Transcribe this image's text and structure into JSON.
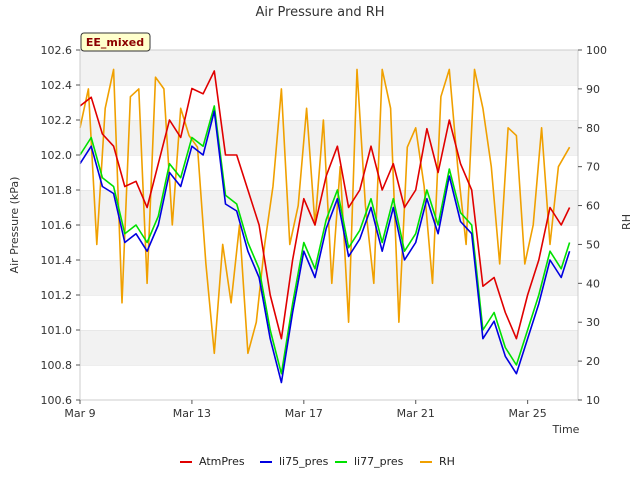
{
  "chart_data": {
    "type": "line",
    "title": "Air Pressure and RH",
    "badge": "EE_mixed",
    "xlabel": "Time",
    "ylabel": "Air Pressure (kPa)",
    "y2label": "RH",
    "x_ticks": [
      "Mar 9",
      "Mar 13",
      "Mar 17",
      "Mar 21",
      "Mar 25"
    ],
    "x_tick_days": [
      9,
      13,
      17,
      21,
      25
    ],
    "xlim": [
      9,
      26.8
    ],
    "ylim": [
      100.6,
      102.6
    ],
    "y_ticks": [
      "100.6",
      "100.8",
      "101.0",
      "101.2",
      "101.4",
      "101.6",
      "101.8",
      "102.0",
      "102.2",
      "102.4",
      "102.6"
    ],
    "y2lim": [
      10,
      100
    ],
    "y2_ticks": [
      "10",
      "20",
      "30",
      "40",
      "50",
      "60",
      "70",
      "80",
      "90",
      "100"
    ],
    "grid": "horizontal bands",
    "legend_position": "bottom",
    "colors": {
      "AtmPres": "#e00000",
      "li75_pres": "#0000e0",
      "li77_pres": "#00e000",
      "RH": "#f0a000"
    },
    "series": [
      {
        "name": "AtmPres",
        "axis": "left",
        "x": [
          9.0,
          9.4,
          9.8,
          10.2,
          10.6,
          11.0,
          11.4,
          11.8,
          12.2,
          12.6,
          13.0,
          13.4,
          13.8,
          14.2,
          14.6,
          15.0,
          15.4,
          15.8,
          16.2,
          16.6,
          17.0,
          17.4,
          17.8,
          18.2,
          18.6,
          19.0,
          19.4,
          19.8,
          20.2,
          20.6,
          21.0,
          21.4,
          21.8,
          22.2,
          22.6,
          23.0,
          23.4,
          23.8,
          24.2,
          24.6,
          25.0,
          25.4,
          25.8,
          26.2,
          26.5
        ],
        "values": [
          102.28,
          102.33,
          102.12,
          102.05,
          101.82,
          101.85,
          101.7,
          101.95,
          102.2,
          102.1,
          102.38,
          102.35,
          102.48,
          102.0,
          102.0,
          101.8,
          101.6,
          101.2,
          100.95,
          101.4,
          101.75,
          101.6,
          101.88,
          102.05,
          101.7,
          101.8,
          102.05,
          101.8,
          101.95,
          101.7,
          101.8,
          102.15,
          101.9,
          102.2,
          101.95,
          101.8,
          101.25,
          101.3,
          101.1,
          100.95,
          101.2,
          101.4,
          101.7,
          101.6,
          101.7
        ]
      },
      {
        "name": "li75_pres",
        "axis": "left",
        "x": [
          9.0,
          9.4,
          9.8,
          10.2,
          10.6,
          11.0,
          11.4,
          11.8,
          12.2,
          12.6,
          13.0,
          13.4,
          13.8,
          14.2,
          14.6,
          15.0,
          15.4,
          15.8,
          16.2,
          16.6,
          17.0,
          17.4,
          17.8,
          18.2,
          18.6,
          19.0,
          19.4,
          19.8,
          20.2,
          20.6,
          21.0,
          21.4,
          21.8,
          22.2,
          22.6,
          23.0,
          23.4,
          23.8,
          24.2,
          24.6,
          25.0,
          25.4,
          25.8,
          26.2,
          26.5
        ],
        "values": [
          101.95,
          102.05,
          101.82,
          101.78,
          101.5,
          101.55,
          101.45,
          101.6,
          101.9,
          101.82,
          102.05,
          102.0,
          102.25,
          101.72,
          101.68,
          101.45,
          101.3,
          100.95,
          100.7,
          101.1,
          101.45,
          101.3,
          101.58,
          101.75,
          101.42,
          101.52,
          101.7,
          101.45,
          101.7,
          101.4,
          101.5,
          101.75,
          101.55,
          101.88,
          101.62,
          101.55,
          100.95,
          101.05,
          100.85,
          100.75,
          100.95,
          101.15,
          101.4,
          101.3,
          101.45
        ]
      },
      {
        "name": "li77_pres",
        "axis": "left",
        "x": [
          9.0,
          9.4,
          9.8,
          10.2,
          10.6,
          11.0,
          11.4,
          11.8,
          12.2,
          12.6,
          13.0,
          13.4,
          13.8,
          14.2,
          14.6,
          15.0,
          15.4,
          15.8,
          16.2,
          16.6,
          17.0,
          17.4,
          17.8,
          18.2,
          18.6,
          19.0,
          19.4,
          19.8,
          20.2,
          20.6,
          21.0,
          21.4,
          21.8,
          22.2,
          22.6,
          23.0,
          23.4,
          23.8,
          24.2,
          24.6,
          25.0,
          25.4,
          25.8,
          26.2,
          26.5
        ],
        "values": [
          102.0,
          102.1,
          101.87,
          101.82,
          101.55,
          101.6,
          101.5,
          101.65,
          101.95,
          101.87,
          102.1,
          102.05,
          102.28,
          101.77,
          101.72,
          101.5,
          101.35,
          101.0,
          100.75,
          101.15,
          101.5,
          101.35,
          101.63,
          101.8,
          101.47,
          101.57,
          101.75,
          101.5,
          101.75,
          101.45,
          101.55,
          101.8,
          101.6,
          101.92,
          101.67,
          101.6,
          101.0,
          101.1,
          100.9,
          100.8,
          101.0,
          101.2,
          101.45,
          101.35,
          101.5
        ]
      },
      {
        "name": "RH",
        "axis": "right",
        "x": [
          9.0,
          9.3,
          9.6,
          9.9,
          10.2,
          10.5,
          10.8,
          11.1,
          11.4,
          11.7,
          12.0,
          12.3,
          12.6,
          12.9,
          13.2,
          13.5,
          13.8,
          14.1,
          14.4,
          14.7,
          15.0,
          15.3,
          15.6,
          15.9,
          16.2,
          16.5,
          16.8,
          17.1,
          17.4,
          17.7,
          18.0,
          18.3,
          18.6,
          18.9,
          19.2,
          19.5,
          19.8,
          20.1,
          20.4,
          20.7,
          21.0,
          21.3,
          21.6,
          21.9,
          22.2,
          22.5,
          22.8,
          23.1,
          23.4,
          23.7,
          24.0,
          24.3,
          24.6,
          24.9,
          25.2,
          25.5,
          25.8,
          26.1,
          26.5
        ],
        "values": [
          80,
          90,
          50,
          85,
          95,
          35,
          88,
          90,
          40,
          93,
          90,
          55,
          85,
          78,
          75,
          45,
          22,
          50,
          35,
          55,
          22,
          30,
          50,
          65,
          90,
          50,
          60,
          85,
          55,
          82,
          40,
          70,
          30,
          95,
          60,
          40,
          95,
          85,
          30,
          75,
          80,
          65,
          40,
          88,
          95,
          70,
          50,
          95,
          85,
          70,
          45,
          80,
          78,
          45,
          55,
          80,
          50,
          70,
          75
        ]
      }
    ]
  }
}
